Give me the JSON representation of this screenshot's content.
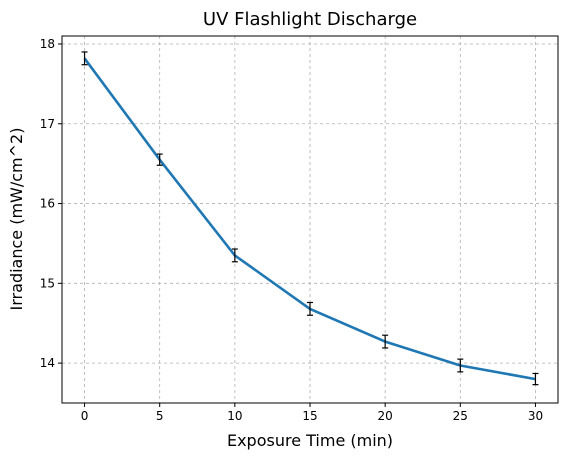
{
  "chart_data": {
    "type": "line",
    "title": "UV Flashlight Discharge",
    "xlabel": "Exposure Time (min)",
    "ylabel": "Irradiance (mW/cm^2)",
    "xlim": [
      -1.5,
      31.5
    ],
    "ylim": [
      13.5,
      18.1
    ],
    "x_ticks": [
      0,
      5,
      10,
      15,
      20,
      25,
      30
    ],
    "y_ticks": [
      14,
      15,
      16,
      17,
      18
    ],
    "grid": true,
    "grid_style": "dashed",
    "series": [
      {
        "color": "#1f77b4",
        "x": [
          0,
          5,
          10,
          15,
          20,
          25,
          30
        ],
        "y": [
          17.82,
          16.55,
          15.35,
          14.68,
          14.27,
          13.97,
          13.8
        ],
        "error": [
          0.08,
          0.07,
          0.08,
          0.08,
          0.08,
          0.08,
          0.07
        ]
      }
    ]
  }
}
